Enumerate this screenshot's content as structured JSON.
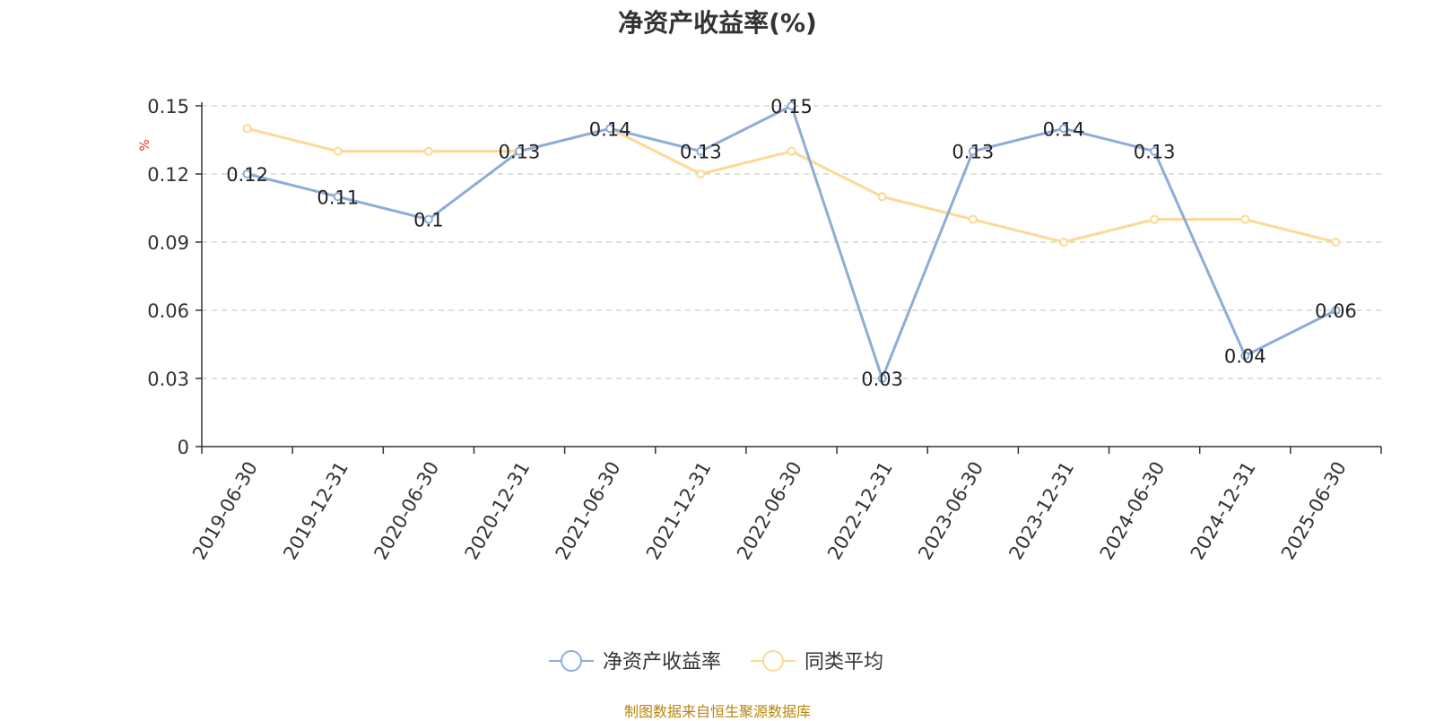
{
  "chart_data": {
    "type": "line",
    "title": "净资产收益率(%)",
    "ylabel": "%",
    "xlabel": "",
    "ylim": [
      0,
      0.15
    ],
    "yticks": [
      "0",
      "0.03",
      "0.06",
      "0.09",
      "0.12",
      "0.15"
    ],
    "categories": [
      "2019-06-30",
      "2019-12-31",
      "2020-06-30",
      "2020-12-31",
      "2021-06-30",
      "2021-12-31",
      "2022-06-30",
      "2022-12-31",
      "2023-06-30",
      "2023-12-31",
      "2024-06-30",
      "2024-12-31",
      "2025-06-30"
    ],
    "series": [
      {
        "name": "净资产收益率",
        "color": "#8eacd8",
        "values": [
          0.12,
          0.11,
          0.1,
          0.13,
          0.14,
          0.13,
          0.15,
          0.03,
          0.13,
          0.14,
          0.13,
          0.04,
          0.06
        ],
        "labels": [
          "0.12",
          "0.11",
          "0.1",
          "0.13",
          "0.14",
          "0.13",
          "0.15",
          "0.03",
          "0.13",
          "0.14",
          "0.13",
          "0.04",
          "0.06"
        ]
      },
      {
        "name": "同类平均",
        "color": "#fcd995",
        "values": [
          0.14,
          0.13,
          0.13,
          0.13,
          0.14,
          0.12,
          0.13,
          0.11,
          0.1,
          0.09,
          0.1,
          0.1,
          0.09
        ]
      }
    ],
    "grid": true,
    "legend": "bottom-center"
  },
  "source": "制图数据来自恒生聚源数据库"
}
